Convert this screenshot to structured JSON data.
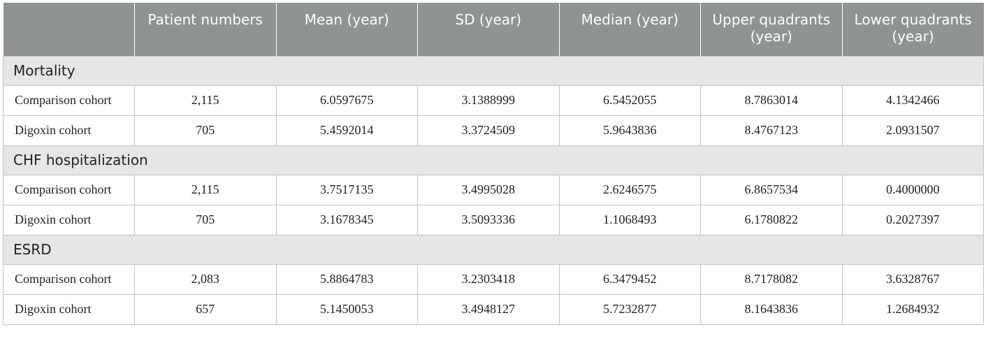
{
  "columns": [
    "",
    "Patient numbers",
    "Mean (year)",
    "SD (year)",
    "Median (year)",
    "Upper quadrants (year)",
    "Lower quadrants (year)"
  ],
  "sections": [
    {
      "title": "Mortality",
      "rows": [
        [
          "Comparison cohort",
          "2,115",
          "6.0597675",
          "3.1388999",
          "6.5452055",
          "8.7863014",
          "4.1342466"
        ],
        [
          "Digoxin cohort",
          "705",
          "5.4592014",
          "3.3724509",
          "5.9643836",
          "8.4767123",
          "2.0931507"
        ]
      ]
    },
    {
      "title": "CHF hospitalization",
      "rows": [
        [
          "Comparison cohort",
          "2,115",
          "3.7517135",
          "3.4995028",
          "2.6246575",
          "6.8657534",
          "0.4000000"
        ],
        [
          "Digoxin cohort",
          "705",
          "3.1678345",
          "3.5093336",
          "1.1068493",
          "6.1780822",
          "0.2027397"
        ]
      ]
    },
    {
      "title": "ESRD",
      "rows": [
        [
          "Comparison cohort",
          "2,083",
          "5.8864783",
          "3.2303418",
          "6.3479452",
          "8.7178082",
          "3.6328767"
        ],
        [
          "Digoxin cohort",
          "657",
          "5.1450053",
          "3.4948127",
          "5.7232877",
          "8.1643836",
          "1.2684932"
        ]
      ]
    }
  ]
}
